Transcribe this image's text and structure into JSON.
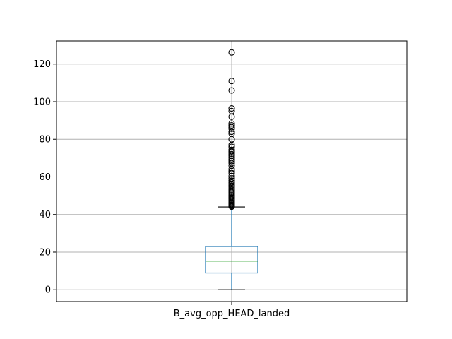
{
  "chart_data": {
    "type": "box",
    "categories": [
      "B_avg_opp_HEAD_landed"
    ],
    "ylim": [
      -6.3,
      132.3
    ],
    "yticks": [
      0,
      20,
      40,
      60,
      80,
      100,
      120
    ],
    "grid": true,
    "colors": {
      "box": "#1f77b4",
      "median": "#2ca02c",
      "whisker_cap": "#000000",
      "outlier": "#000000",
      "grid": "#b0b0b0"
    },
    "boxes": [
      {
        "name": "B_avg_opp_HEAD_landed",
        "whisker_low": 0,
        "q1": 8.9,
        "median": 15.2,
        "q3": 23.0,
        "whisker_high": 44.0,
        "outliers": [
          44.2,
          44.6,
          45.1,
          45.6,
          46.1,
          46.6,
          47.2,
          47.8,
          48.4,
          49.0,
          49.6,
          50.2,
          50.9,
          51.6,
          52.3,
          53.0,
          53.8,
          54.6,
          55.4,
          56.2,
          57.0,
          58.0,
          59.2,
          60.5,
          62.0,
          63.1,
          64.2,
          66.0,
          67.3,
          68.4,
          69.4,
          70.3,
          71.2,
          72.1,
          72.9,
          73.6,
          74.4,
          76.0,
          77.0,
          80.0,
          83.0,
          84.0,
          85.6,
          86.4,
          87.4,
          88.4,
          92.0,
          95.0,
          96.4,
          106.0,
          111.0,
          126.2
        ]
      }
    ]
  }
}
